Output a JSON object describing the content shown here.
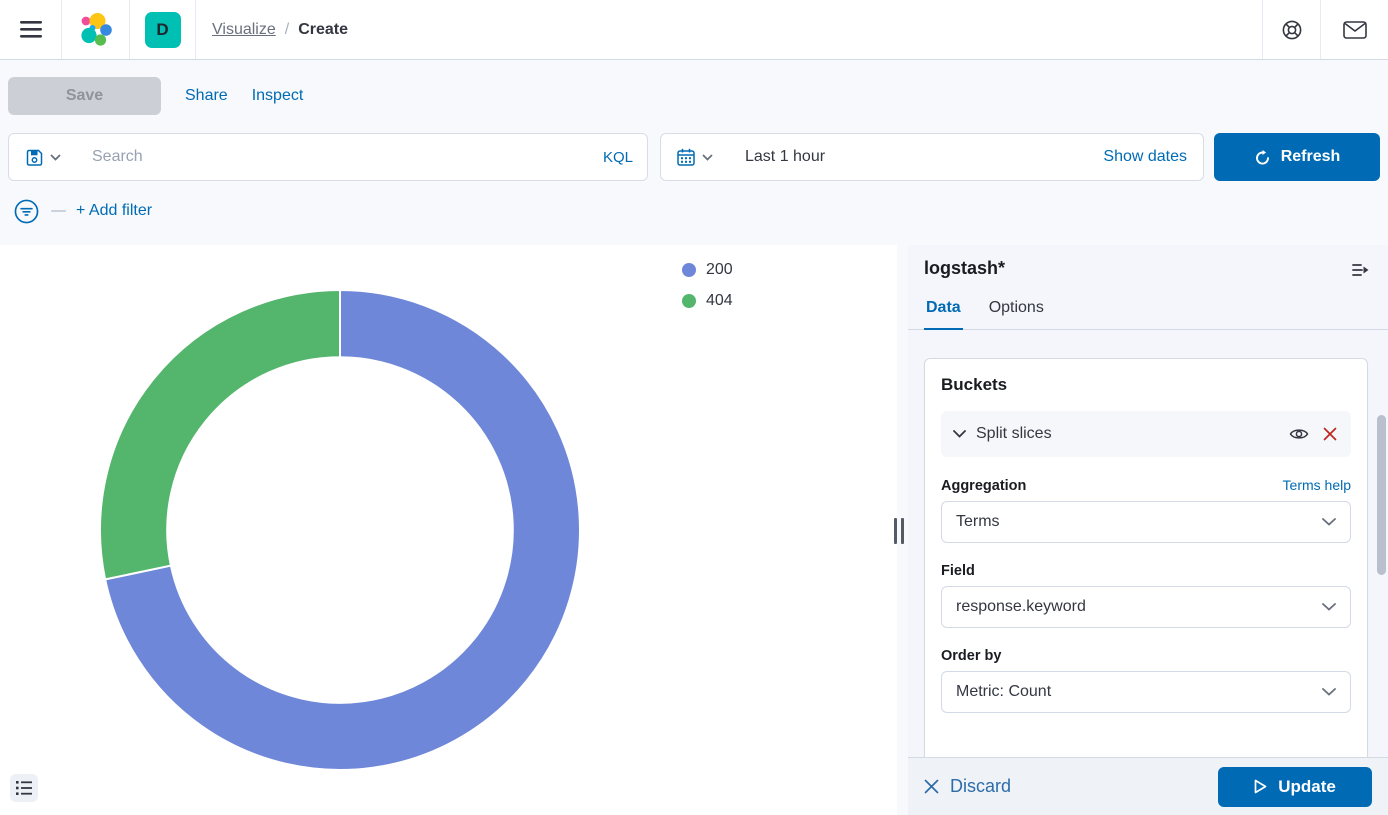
{
  "header": {
    "space_badge": "D",
    "breadcrumb": {
      "parent": "Visualize",
      "separator": "/",
      "current": "Create"
    }
  },
  "toolbar": {
    "save": "Save",
    "share": "Share",
    "inspect": "Inspect"
  },
  "query_bar": {
    "search_placeholder": "Search",
    "language": "KQL",
    "time_range": "Last 1 hour",
    "show_dates": "Show dates",
    "refresh": "Refresh"
  },
  "filter_bar": {
    "add_filter": "+ Add filter"
  },
  "legend": [
    {
      "label": "200",
      "color": "#6F87D8"
    },
    {
      "label": "404",
      "color": "#54B56C"
    }
  ],
  "chart_data": {
    "type": "pie",
    "subtype": "donut",
    "categories": [
      "200",
      "404"
    ],
    "values_pct": [
      71.7,
      28.3
    ],
    "colors": [
      "#6F87D8",
      "#54B56C"
    ],
    "split_field": "response.keyword",
    "metric": "Count",
    "start_angle_deg": 0,
    "clockwise": true,
    "inner_radius_ratio": 0.72,
    "legend_position": "top-right"
  },
  "side_panel": {
    "title": "logstash*",
    "tabs": [
      {
        "label": "Data"
      },
      {
        "label": "Options"
      }
    ],
    "buckets": {
      "heading": "Buckets",
      "split_label": "Split slices",
      "aggregation_label": "Aggregation",
      "aggregation_help": "Terms help",
      "aggregation_value": "Terms",
      "field_label": "Field",
      "field_value": "response.keyword",
      "order_by_label": "Order by",
      "order_by_value": "Metric: Count"
    },
    "footer": {
      "discard": "Discard",
      "update": "Update"
    }
  },
  "colors": {
    "primary": "#006BB4",
    "danger": "#BD271E",
    "accent_teal": "#00BFB3"
  }
}
